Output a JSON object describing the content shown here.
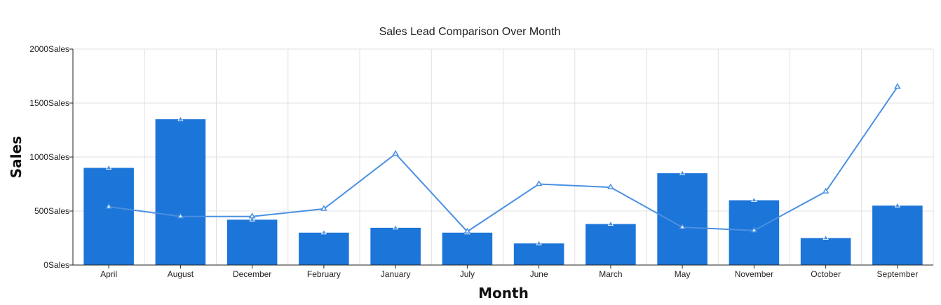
{
  "chart_data": {
    "type": "bar",
    "title": "Sales Lead Comparison Over Month",
    "xlabel": "Month",
    "ylabel": "Sales",
    "categories": [
      "April",
      "August",
      "December",
      "February",
      "January",
      "July",
      "June",
      "March",
      "May",
      "November",
      "October",
      "September"
    ],
    "y_ticks": [
      "0Sales",
      "500Sales",
      "1000Sales",
      "1500Sales",
      "2000Sales"
    ],
    "ylim": [
      0,
      2000
    ],
    "grid": true,
    "series": [
      {
        "type": "bar",
        "values": [
          900,
          1350,
          420,
          300,
          345,
          300,
          200,
          380,
          850,
          600,
          250,
          550
        ],
        "color": "#1c75d8"
      },
      {
        "type": "line",
        "values": [
          540,
          450,
          450,
          520,
          1030,
          310,
          750,
          720,
          350,
          320,
          680,
          1650
        ],
        "color": "#4a90e2"
      }
    ]
  }
}
